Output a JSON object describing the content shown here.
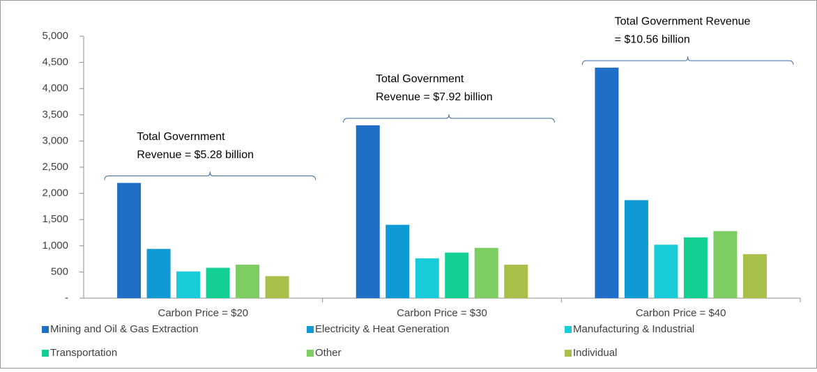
{
  "chart_data": {
    "type": "bar",
    "categories": [
      "Carbon Price = $20",
      "Carbon Price = $30",
      "Carbon Price = $40"
    ],
    "series": [
      {
        "name": "Mining and Oil & Gas Extraction",
        "color": "#1f6fc6",
        "values": [
          2200,
          3300,
          4400
        ]
      },
      {
        "name": "Electricity & Heat Generation",
        "color": "#0f9ad6",
        "values": [
          940,
          1400,
          1870
        ]
      },
      {
        "name": "Manufacturing & Industrial",
        "color": "#17cbd9",
        "values": [
          510,
          760,
          1020
        ]
      },
      {
        "name": "Transportation",
        "color": "#14cf94",
        "values": [
          580,
          870,
          1160
        ]
      },
      {
        "name": "Other",
        "color": "#7dcd62",
        "values": [
          640,
          960,
          1280
        ]
      },
      {
        "name": "Individual",
        "color": "#a8c04a",
        "values": [
          420,
          640,
          840
        ]
      }
    ],
    "annotations": [
      [
        "Total Government",
        "Revenue = $5.28 billion"
      ],
      [
        "Total Government",
        "Revenue = $7.92 billion"
      ],
      [
        "Total Government Revenue",
        "= $10.56 billion"
      ]
    ],
    "ylim": [
      0,
      5000
    ],
    "yticks": [
      {
        "value": 0,
        "label": "-"
      },
      500,
      {
        "value": 1000,
        "label": "1,000"
      },
      {
        "value": 1500,
        "label": "1,500"
      },
      {
        "value": 2000,
        "label": "2,000"
      },
      {
        "value": 2500,
        "label": "2,500"
      },
      {
        "value": 3000,
        "label": "3,000"
      },
      {
        "value": 3500,
        "label": "3,500"
      },
      {
        "value": 4000,
        "label": "4,000"
      },
      {
        "value": 4500,
        "label": "4,500"
      },
      {
        "value": 5000,
        "label": "5,000"
      }
    ],
    "grid": false
  }
}
